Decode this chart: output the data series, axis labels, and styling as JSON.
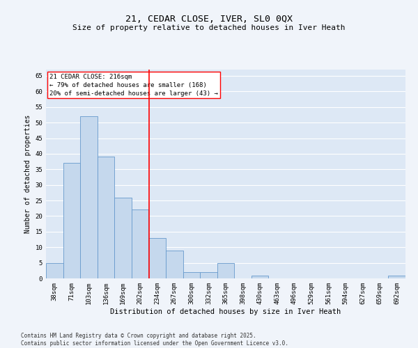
{
  "title1": "21, CEDAR CLOSE, IVER, SL0 0QX",
  "title2": "Size of property relative to detached houses in Iver Heath",
  "xlabel": "Distribution of detached houses by size in Iver Heath",
  "ylabel": "Number of detached properties",
  "categories": [
    "38sqm",
    "71sqm",
    "103sqm",
    "136sqm",
    "169sqm",
    "202sqm",
    "234sqm",
    "267sqm",
    "300sqm",
    "332sqm",
    "365sqm",
    "398sqm",
    "430sqm",
    "463sqm",
    "496sqm",
    "529sqm",
    "561sqm",
    "594sqm",
    "627sqm",
    "659sqm",
    "692sqm"
  ],
  "values": [
    5,
    37,
    52,
    39,
    26,
    22,
    13,
    9,
    2,
    2,
    5,
    0,
    1,
    0,
    0,
    0,
    0,
    0,
    0,
    0,
    1
  ],
  "bar_color": "#c5d8ed",
  "bar_edge_color": "#6699cc",
  "bar_edge_width": 0.6,
  "red_line_x": 5.515,
  "annotation_text": "21 CEDAR CLOSE: 216sqm\n← 79% of detached houses are smaller (168)\n20% of semi-detached houses are larger (43) →",
  "ylim": [
    0,
    67
  ],
  "yticks": [
    0,
    5,
    10,
    15,
    20,
    25,
    30,
    35,
    40,
    45,
    50,
    55,
    60,
    65
  ],
  "background_color": "#dde8f5",
  "grid_color": "#ffffff",
  "fig_background": "#f0f4fa",
  "footer": "Contains HM Land Registry data © Crown copyright and database right 2025.\nContains public sector information licensed under the Open Government Licence v3.0.",
  "title1_fontsize": 9.5,
  "title2_fontsize": 8,
  "xlabel_fontsize": 7.5,
  "ylabel_fontsize": 7,
  "tick_fontsize": 6.5,
  "annotation_fontsize": 6.5,
  "footer_fontsize": 5.5
}
